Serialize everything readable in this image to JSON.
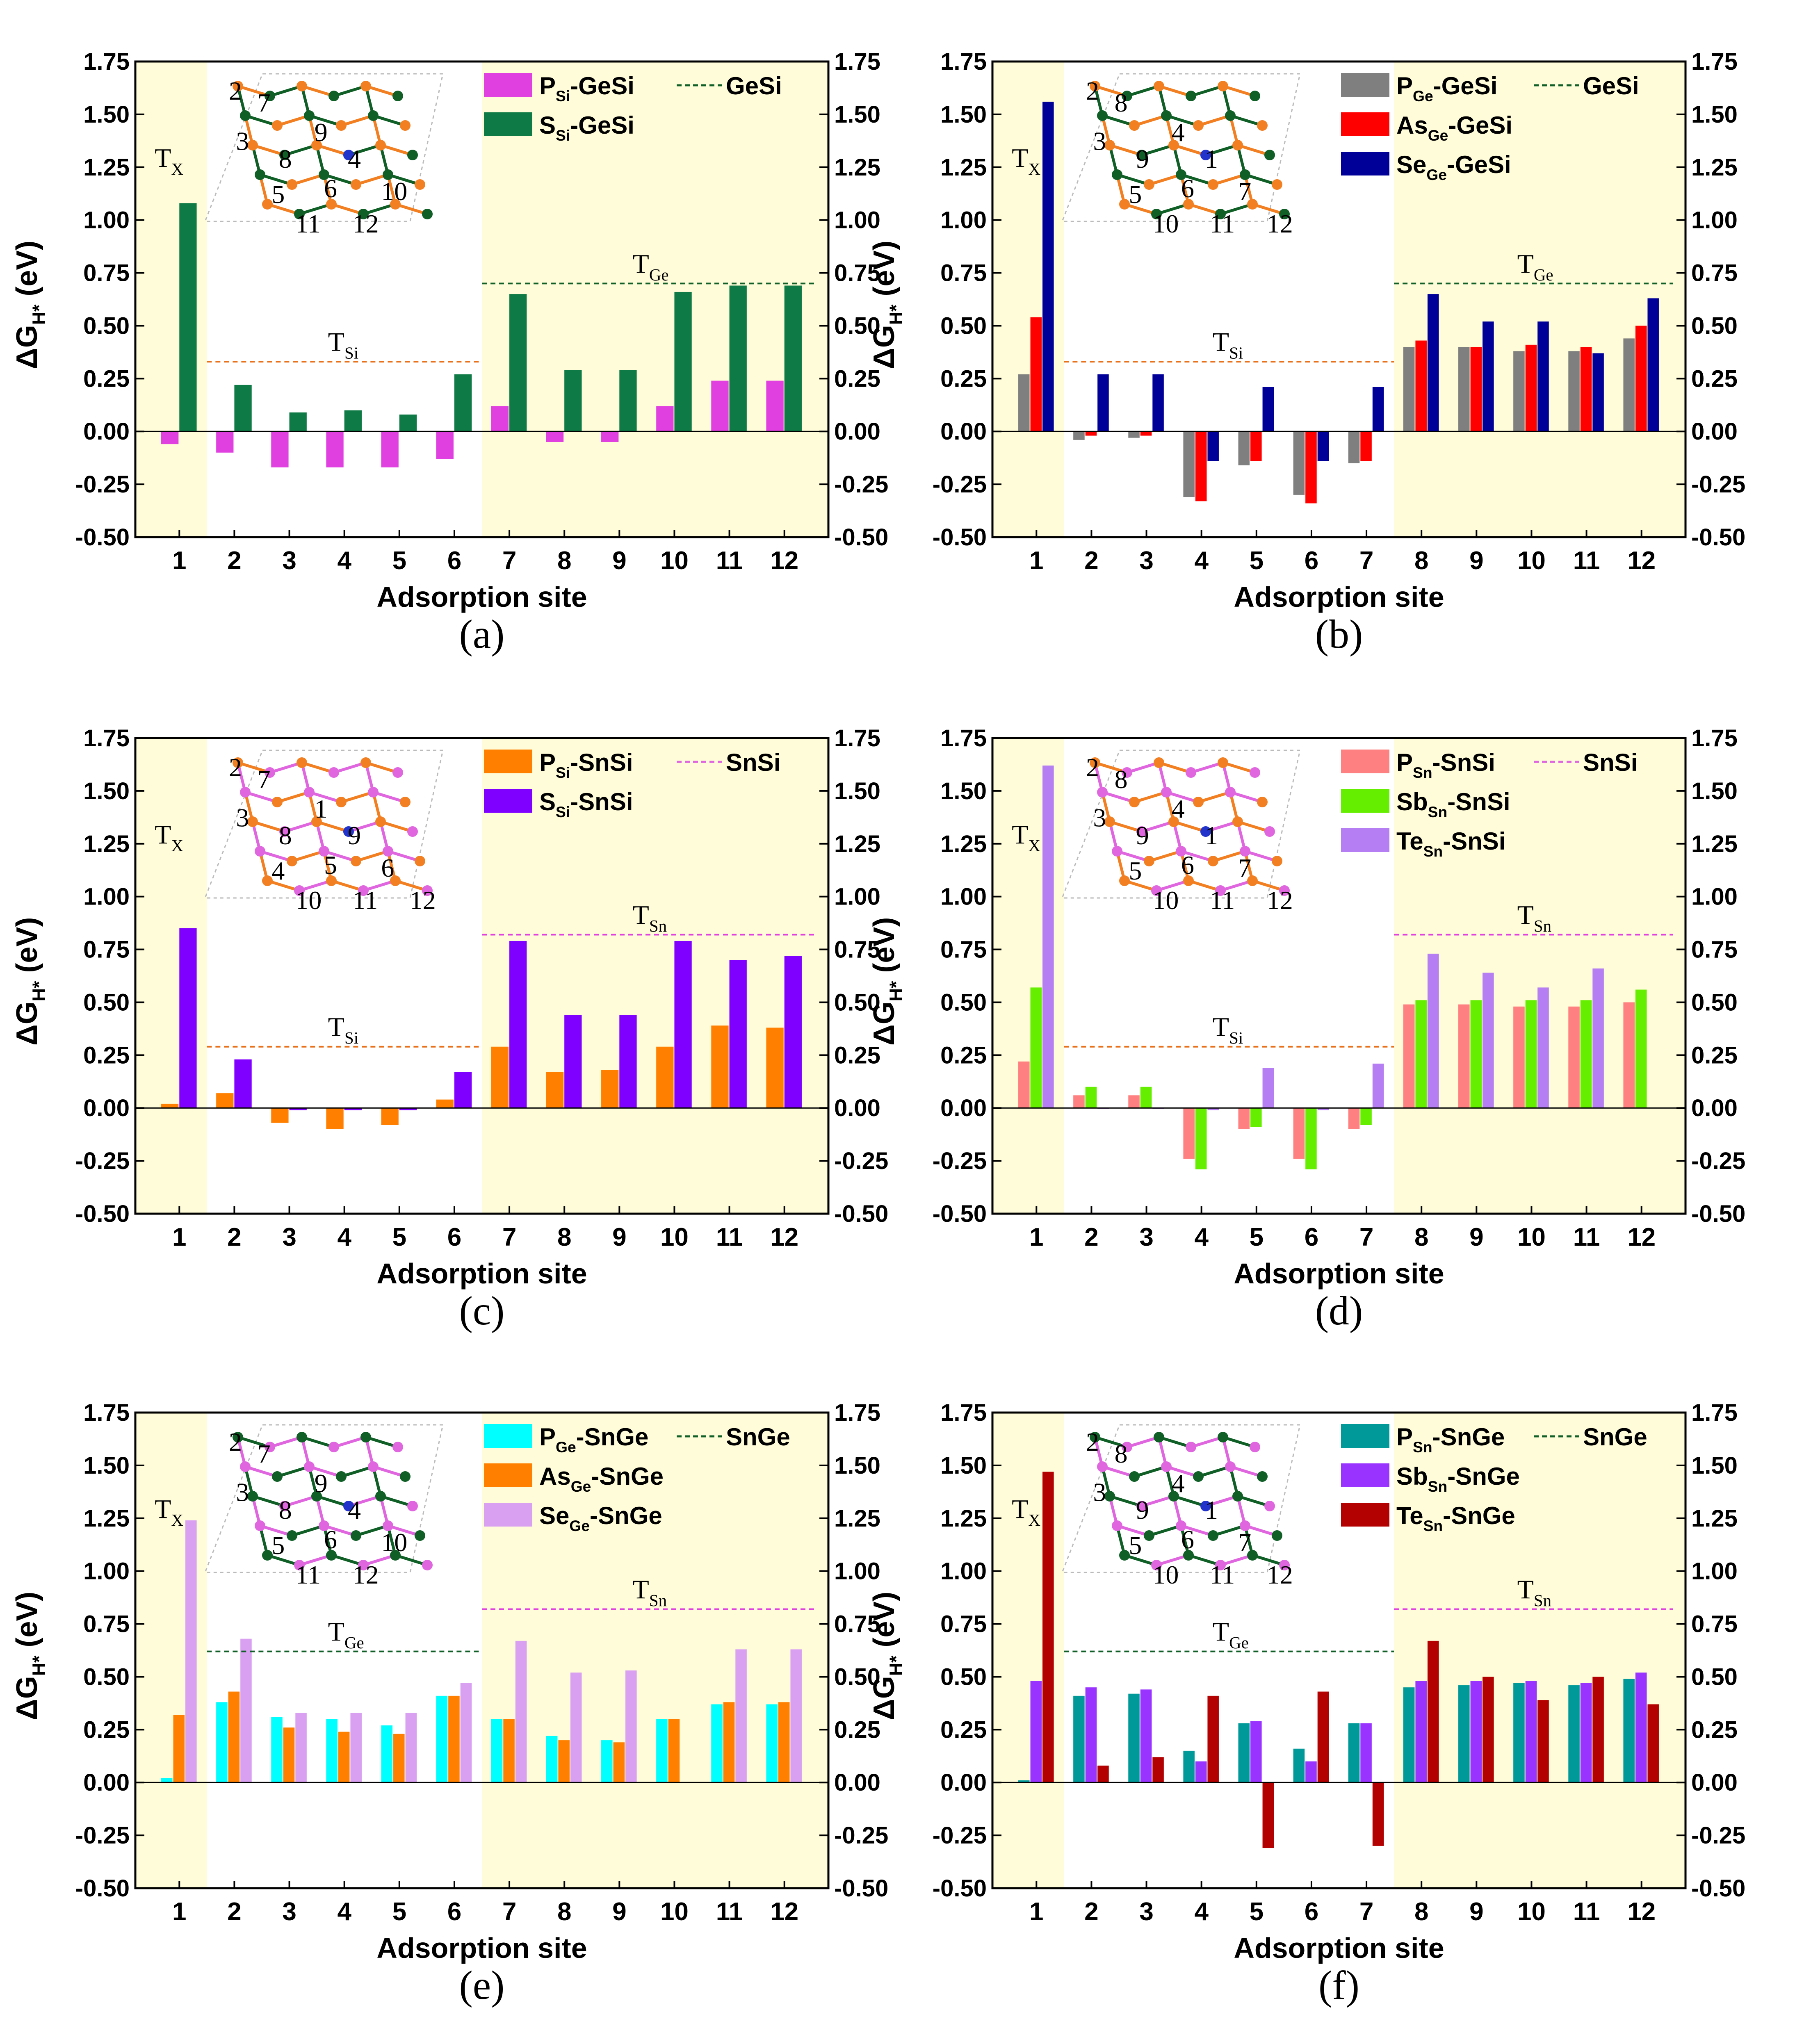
{
  "figure": {
    "y_ticks": [
      "-0.50",
      "-0.25",
      "0.00",
      "0.25",
      "0.50",
      "0.75",
      "1.00",
      "1.25",
      "1.50",
      "1.75"
    ],
    "x_ticks": [
      "1",
      "2",
      "3",
      "4",
      "5",
      "6",
      "7",
      "8",
      "9",
      "10",
      "11",
      "12"
    ],
    "colors": {
      "band": "#FFFCD9",
      "axis": "#000000",
      "host_GeSi": "#0F5F27",
      "host_SnSi": "#E066E0",
      "host_SnGe": "#0F5F27",
      "lattice_Ge": "#0F5F27",
      "lattice_Si": "#F28022",
      "lattice_Sn": "#E066E0",
      "dopant": "#2233CC"
    }
  },
  "chart_data": [
    {
      "panel": "(a)",
      "type": "bar",
      "xlabel": "Adsorption site",
      "ylabel": "ΔG_{H*} (eV)",
      "ylim": [
        -0.5,
        1.75
      ],
      "categories": [
        "1",
        "2",
        "3",
        "4",
        "5",
        "6",
        "7",
        "8",
        "9",
        "10",
        "11",
        "12"
      ],
      "series": [
        {
          "name": "P_{Si}-GeSi",
          "color": "#E040E0",
          "values": [
            -0.06,
            -0.1,
            -0.17,
            -0.17,
            -0.17,
            -0.13,
            0.12,
            -0.05,
            -0.05,
            0.12,
            0.24,
            0.24
          ]
        },
        {
          "name": "S_{Si}-GeSi",
          "color": "#0E7A45",
          "values": [
            1.08,
            0.22,
            0.09,
            0.1,
            0.08,
            0.27,
            0.65,
            0.29,
            0.29,
            0.66,
            0.69,
            0.69
          ]
        }
      ],
      "host": {
        "name": "GeSi",
        "color": "#0F5F27"
      },
      "regions": [
        {
          "label": "T_{X}",
          "from": 1,
          "to": 1,
          "shaded": true,
          "level": null,
          "color": "#000000"
        },
        {
          "label": "T_{Si}",
          "from": 2,
          "to": 6,
          "shaded": false,
          "level": 0.33,
          "color": "#E8711A"
        },
        {
          "label": "T_{Ge}",
          "from": 7,
          "to": 12,
          "shaded": true,
          "level": 0.7,
          "color": "#0F5F27"
        }
      ],
      "structure": {
        "hosts": [
          "Ge",
          "Si"
        ],
        "labels": [
          "2",
          "7",
          "3",
          "8",
          "9",
          "4",
          "5",
          "6",
          "10",
          "11",
          "12"
        ]
      }
    },
    {
      "panel": "(b)",
      "type": "bar",
      "xlabel": "Adsorption site",
      "ylabel": "ΔG_{H*} (eV)",
      "ylim": [
        -0.5,
        1.75
      ],
      "categories": [
        "1",
        "2",
        "3",
        "4",
        "5",
        "6",
        "7",
        "8",
        "9",
        "10",
        "11",
        "12"
      ],
      "series": [
        {
          "name": "P_{Ge}-GeSi",
          "color": "#7F7F7F",
          "values": [
            0.27,
            -0.04,
            -0.03,
            -0.31,
            -0.16,
            -0.3,
            -0.15,
            0.4,
            0.4,
            0.38,
            0.38,
            0.44
          ]
        },
        {
          "name": "As_{Ge}-GeSi",
          "color": "#FF0000",
          "values": [
            0.54,
            -0.02,
            -0.02,
            -0.33,
            -0.14,
            -0.34,
            -0.14,
            0.43,
            0.4,
            0.41,
            0.4,
            0.5
          ]
        },
        {
          "name": "Se_{Ge}-GeSi",
          "color": "#000099",
          "values": [
            1.56,
            0.27,
            0.27,
            -0.14,
            0.21,
            -0.14,
            0.21,
            0.65,
            0.52,
            0.52,
            0.37,
            0.63
          ]
        }
      ],
      "host": {
        "name": "GeSi",
        "color": "#0F5F27"
      },
      "regions": [
        {
          "label": "T_{X}",
          "from": 1,
          "to": 1,
          "shaded": true,
          "level": null,
          "color": "#000000"
        },
        {
          "label": "T_{Si}",
          "from": 2,
          "to": 7,
          "shaded": false,
          "level": 0.33,
          "color": "#E8711A"
        },
        {
          "label": "T_{Ge}",
          "from": 8,
          "to": 12,
          "shaded": true,
          "level": 0.7,
          "color": "#0F5F27"
        }
      ],
      "structure": {
        "hosts": [
          "Ge",
          "Si"
        ],
        "labels": [
          "2",
          "8",
          "3",
          "9",
          "4",
          "1",
          "5",
          "6",
          "7",
          "10",
          "11",
          "12"
        ]
      }
    },
    {
      "panel": "(c)",
      "type": "bar",
      "xlabel": "Adsorption site",
      "ylabel": "ΔG_{H*} (eV)",
      "ylim": [
        -0.5,
        1.75
      ],
      "categories": [
        "1",
        "2",
        "3",
        "4",
        "5",
        "6",
        "7",
        "8",
        "9",
        "10",
        "11",
        "12"
      ],
      "series": [
        {
          "name": "P_{Si}-SnSi",
          "color": "#FF8000",
          "values": [
            0.02,
            0.07,
            -0.07,
            -0.1,
            -0.08,
            0.04,
            0.29,
            0.17,
            0.18,
            0.29,
            0.39,
            0.38
          ]
        },
        {
          "name": "S_{Si}-SnSi",
          "color": "#8000FF",
          "values": [
            0.85,
            0.23,
            -0.01,
            -0.01,
            -0.01,
            0.17,
            0.79,
            0.44,
            0.44,
            0.79,
            0.7,
            0.72
          ]
        }
      ],
      "host": {
        "name": "SnSi",
        "color": "#E066E0"
      },
      "regions": [
        {
          "label": "T_{X}",
          "from": 1,
          "to": 1,
          "shaded": true,
          "level": null,
          "color": "#000000"
        },
        {
          "label": "T_{Si}",
          "from": 2,
          "to": 6,
          "shaded": false,
          "level": 0.29,
          "color": "#E8711A"
        },
        {
          "label": "T_{Sn}",
          "from": 7,
          "to": 12,
          "shaded": true,
          "level": 0.82,
          "color": "#E040E0"
        }
      ],
      "structure": {
        "hosts": [
          "Sn",
          "Si"
        ],
        "labels": [
          "2",
          "7",
          "3",
          "8",
          "1",
          "9",
          "4",
          "5",
          "6",
          "10",
          "11",
          "12"
        ]
      }
    },
    {
      "panel": "(d)",
      "type": "bar",
      "xlabel": "Adsorption site",
      "ylabel": "ΔG_{H*} (eV)",
      "ylim": [
        -0.5,
        1.75
      ],
      "categories": [
        "1",
        "2",
        "3",
        "4",
        "5",
        "6",
        "7",
        "8",
        "9",
        "10",
        "11",
        "12"
      ],
      "series": [
        {
          "name": "P_{Sn}-SnSi",
          "color": "#FF8080",
          "values": [
            0.22,
            0.06,
            0.06,
            -0.24,
            -0.1,
            -0.24,
            -0.1,
            0.49,
            0.49,
            0.48,
            0.48,
            0.5
          ]
        },
        {
          "name": "Sb_{Sn}-SnSi",
          "color": "#66EE00",
          "values": [
            0.57,
            0.1,
            0.1,
            -0.29,
            -0.09,
            -0.29,
            -0.08,
            0.51,
            0.51,
            0.51,
            0.51,
            0.56
          ]
        },
        {
          "name": "Te_{Sn}-SnSi",
          "color": "#B57EF2",
          "values": [
            1.62,
            0.0,
            0.0,
            -0.01,
            0.19,
            -0.01,
            0.21,
            0.73,
            0.64,
            0.57,
            0.66,
            null
          ]
        }
      ],
      "host": {
        "name": "SnSi",
        "color": "#E066E0"
      },
      "regions": [
        {
          "label": "T_{X}",
          "from": 1,
          "to": 1,
          "shaded": true,
          "level": null,
          "color": "#000000"
        },
        {
          "label": "T_{Si}",
          "from": 2,
          "to": 7,
          "shaded": false,
          "level": 0.29,
          "color": "#E8711A"
        },
        {
          "label": "T_{Sn}",
          "from": 8,
          "to": 12,
          "shaded": true,
          "level": 0.82,
          "color": "#E040E0"
        }
      ],
      "structure": {
        "hosts": [
          "Sn",
          "Si"
        ],
        "labels": [
          "2",
          "8",
          "3",
          "9",
          "4",
          "1",
          "5",
          "6",
          "7",
          "10",
          "11",
          "12"
        ]
      }
    },
    {
      "panel": "(e)",
      "type": "bar",
      "xlabel": "Adsorption site",
      "ylabel": "ΔG_{H*} (eV)",
      "ylim": [
        -0.5,
        1.75
      ],
      "categories": [
        "1",
        "2",
        "3",
        "4",
        "5",
        "6",
        "7",
        "8",
        "9",
        "10",
        "11",
        "12"
      ],
      "series": [
        {
          "name": "P_{Ge}-SnGe",
          "color": "#00FFFF",
          "values": [
            0.02,
            0.38,
            0.31,
            0.3,
            0.27,
            0.41,
            0.3,
            0.22,
            0.2,
            0.3,
            0.37,
            0.37
          ]
        },
        {
          "name": "As_{Ge}-SnGe",
          "color": "#FF8000",
          "values": [
            0.32,
            0.43,
            0.26,
            0.24,
            0.23,
            0.41,
            0.3,
            0.2,
            0.19,
            0.3,
            0.38,
            0.38
          ]
        },
        {
          "name": "Se_{Ge}-SnGe",
          "color": "#D9A0F2",
          "values": [
            1.24,
            0.68,
            0.33,
            0.33,
            0.33,
            0.47,
            0.67,
            0.52,
            0.53,
            null,
            0.63,
            0.63
          ]
        }
      ],
      "host": {
        "name": "SnGe",
        "color": "#0F5F27"
      },
      "regions": [
        {
          "label": "T_{X}",
          "from": 1,
          "to": 1,
          "shaded": true,
          "level": null,
          "color": "#000000"
        },
        {
          "label": "T_{Ge}",
          "from": 2,
          "to": 6,
          "shaded": false,
          "level": 0.62,
          "color": "#0F5F27"
        },
        {
          "label": "T_{Sn}",
          "from": 7,
          "to": 12,
          "shaded": true,
          "level": 0.82,
          "color": "#E040E0"
        }
      ],
      "structure": {
        "hosts": [
          "Sn",
          "Ge"
        ],
        "labels": [
          "2",
          "7",
          "3",
          "8",
          "9",
          "4",
          "5",
          "6",
          "10",
          "11",
          "12"
        ]
      }
    },
    {
      "panel": "(f)",
      "type": "bar",
      "xlabel": "Adsorption site",
      "ylabel": "ΔG_{H*} (eV)",
      "ylim": [
        -0.5,
        1.75
      ],
      "categories": [
        "1",
        "2",
        "3",
        "4",
        "5",
        "6",
        "7",
        "8",
        "9",
        "10",
        "11",
        "12"
      ],
      "series": [
        {
          "name": "P_{Sn}-SnGe",
          "color": "#009999",
          "values": [
            0.01,
            0.41,
            0.42,
            0.15,
            0.28,
            0.16,
            0.28,
            0.45,
            0.46,
            0.47,
            0.46,
            0.49
          ]
        },
        {
          "name": "Sb_{Sn}-SnGe",
          "color": "#9933FF",
          "values": [
            0.48,
            0.45,
            0.44,
            0.1,
            0.29,
            0.1,
            0.28,
            0.48,
            0.48,
            0.48,
            0.47,
            0.52
          ]
        },
        {
          "name": "Te_{Sn}-SnGe",
          "color": "#B30000",
          "values": [
            1.47,
            0.08,
            0.12,
            0.41,
            -0.31,
            0.43,
            -0.3,
            0.67,
            0.5,
            0.39,
            0.5,
            0.37
          ]
        }
      ],
      "host": {
        "name": "SnGe",
        "color": "#0F5F27"
      },
      "regions": [
        {
          "label": "T_{X}",
          "from": 1,
          "to": 1,
          "shaded": true,
          "level": null,
          "color": "#000000"
        },
        {
          "label": "T_{Ge}",
          "from": 2,
          "to": 7,
          "shaded": false,
          "level": 0.62,
          "color": "#0F5F27"
        },
        {
          "label": "T_{Sn}",
          "from": 8,
          "to": 12,
          "shaded": true,
          "level": 0.82,
          "color": "#E040E0"
        }
      ],
      "structure": {
        "hosts": [
          "Sn",
          "Ge"
        ],
        "labels": [
          "2",
          "8",
          "3",
          "9",
          "4",
          "1",
          "5",
          "6",
          "7",
          "10",
          "11",
          "12"
        ]
      }
    }
  ]
}
